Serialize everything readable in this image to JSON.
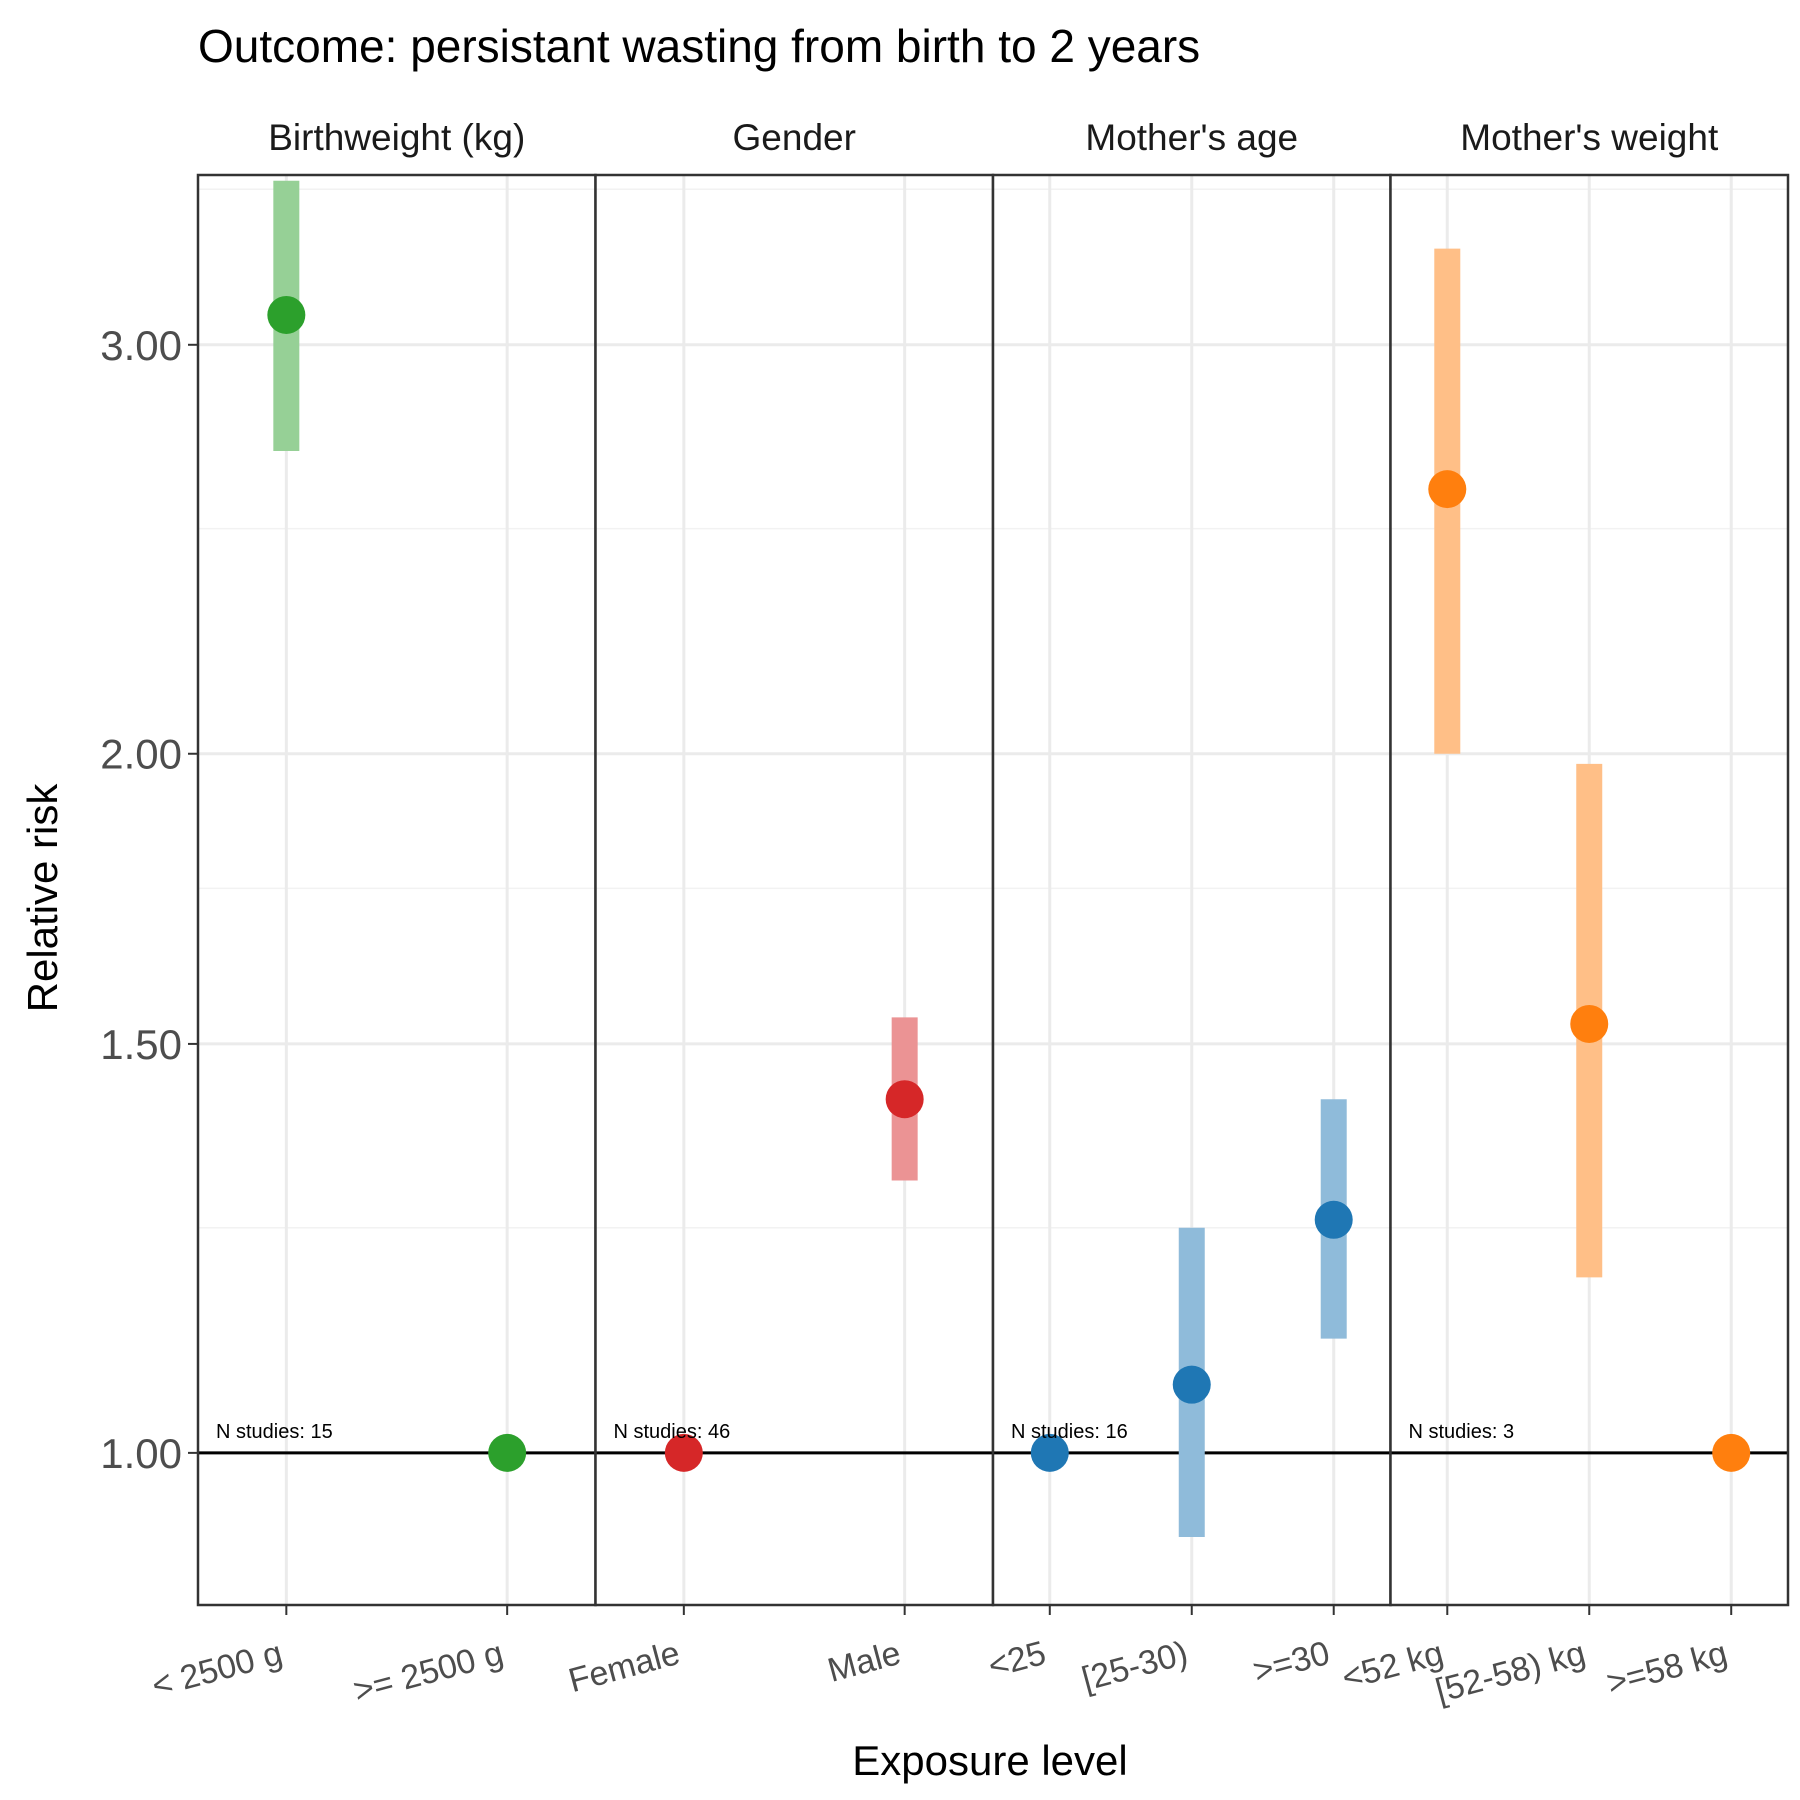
{
  "chart_data": {
    "type": "scatter",
    "title": "Outcome: persistant wasting from birth to 2 years",
    "xlabel": "Exposure level",
    "ylabel": "Relative risk",
    "y_scale": "log",
    "ylim": [
      0.86,
      3.55
    ],
    "y_ticks": [
      1.0,
      1.5,
      2.0,
      3.0
    ],
    "y_tick_labels": [
      "1.00",
      "1.50",
      "2.00",
      "3.00"
    ],
    "reference_line": 1.0,
    "grid": true,
    "panels": [
      {
        "name": "Birthweight (kg)",
        "color": "#2ca02c",
        "n_studies_label": "N studies: 15",
        "points": [
          {
            "level": "< 2500 g",
            "rr": 3.09,
            "ci_lower": 2.7,
            "ci_upper": 3.53
          },
          {
            "level": ">= 2500 g",
            "rr": 1.0,
            "ci_lower": null,
            "ci_upper": null
          }
        ]
      },
      {
        "name": "Gender",
        "color": "#d62728",
        "n_studies_label": "N studies: 46",
        "points": [
          {
            "level": "Female",
            "rr": 1.0,
            "ci_lower": null,
            "ci_upper": null
          },
          {
            "level": "Male",
            "rr": 1.42,
            "ci_lower": 1.31,
            "ci_upper": 1.54
          }
        ]
      },
      {
        "name": "Mother's age",
        "color": "#1f77b4",
        "n_studies_label": "N studies: 16",
        "points": [
          {
            "level": "<25",
            "rr": 1.0,
            "ci_lower": null,
            "ci_upper": null
          },
          {
            "level": "[25-30)",
            "rr": 1.07,
            "ci_lower": 0.92,
            "ci_upper": 1.25
          },
          {
            "level": ">=30",
            "rr": 1.26,
            "ci_lower": 1.12,
            "ci_upper": 1.42
          }
        ]
      },
      {
        "name": "Mother's weight",
        "color": "#ff7f0e",
        "n_studies_label": "N studies: 3",
        "points": [
          {
            "level": "<52 kg",
            "rr": 2.6,
            "ci_lower": 2.0,
            "ci_upper": 3.3
          },
          {
            "level": "[52-58) kg",
            "rr": 1.53,
            "ci_lower": 1.19,
            "ci_upper": 1.98
          },
          {
            "level": ">=58 kg",
            "rr": 1.0,
            "ci_lower": null,
            "ci_upper": null
          }
        ]
      }
    ]
  }
}
